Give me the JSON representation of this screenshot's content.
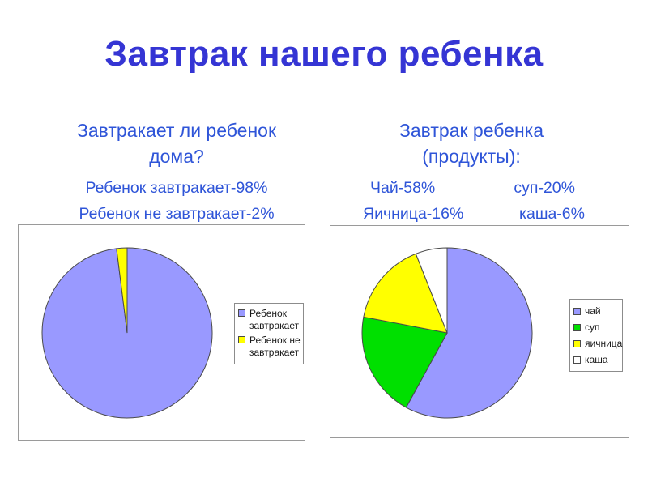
{
  "slide": {
    "title": "Завтрак нашего ребенка"
  },
  "left_section": {
    "heading": [
      "Завтракает ли ребенок",
      "дома?"
    ],
    "stats": [
      "Ребенок завтракает-98%",
      "Ребенок не завтракает-2%"
    ]
  },
  "right_section": {
    "heading": [
      "Завтрак ребенка",
      "(продукты):"
    ],
    "stats_row1": [
      "Чай-58%",
      "суп-20%"
    ],
    "stats_row2": [
      "Яичница-16%",
      "каша-6%"
    ]
  },
  "colors": {
    "title": "#3535d4",
    "subtext": "#2f55d8",
    "panel_border": "#9a9a9a",
    "legend_border": "#8c8c8c",
    "legend_text": "#1a1a1a",
    "pie_stroke": "#4a4a4a"
  },
  "chart_data": [
    {
      "type": "pie",
      "title": "Завтракает ли ребенок дома?",
      "labels": [
        "Ребенок завтракает",
        "Ребенок не завтракает"
      ],
      "values": [
        98,
        2
      ],
      "colors": [
        "#9999FF",
        "#FFFF00"
      ],
      "start_angle_deg": 0,
      "direction": "clockwise",
      "legend_position": "right"
    },
    {
      "type": "pie",
      "title": "Завтрак ребенка (продукты)",
      "labels": [
        "чай",
        "суп",
        "яичница",
        "каша"
      ],
      "values": [
        58,
        20,
        16,
        6
      ],
      "colors": [
        "#9999FF",
        "#00E000",
        "#FFFF00",
        "#FFFFFF"
      ],
      "start_angle_deg": 0,
      "direction": "clockwise",
      "legend_position": "right"
    }
  ]
}
